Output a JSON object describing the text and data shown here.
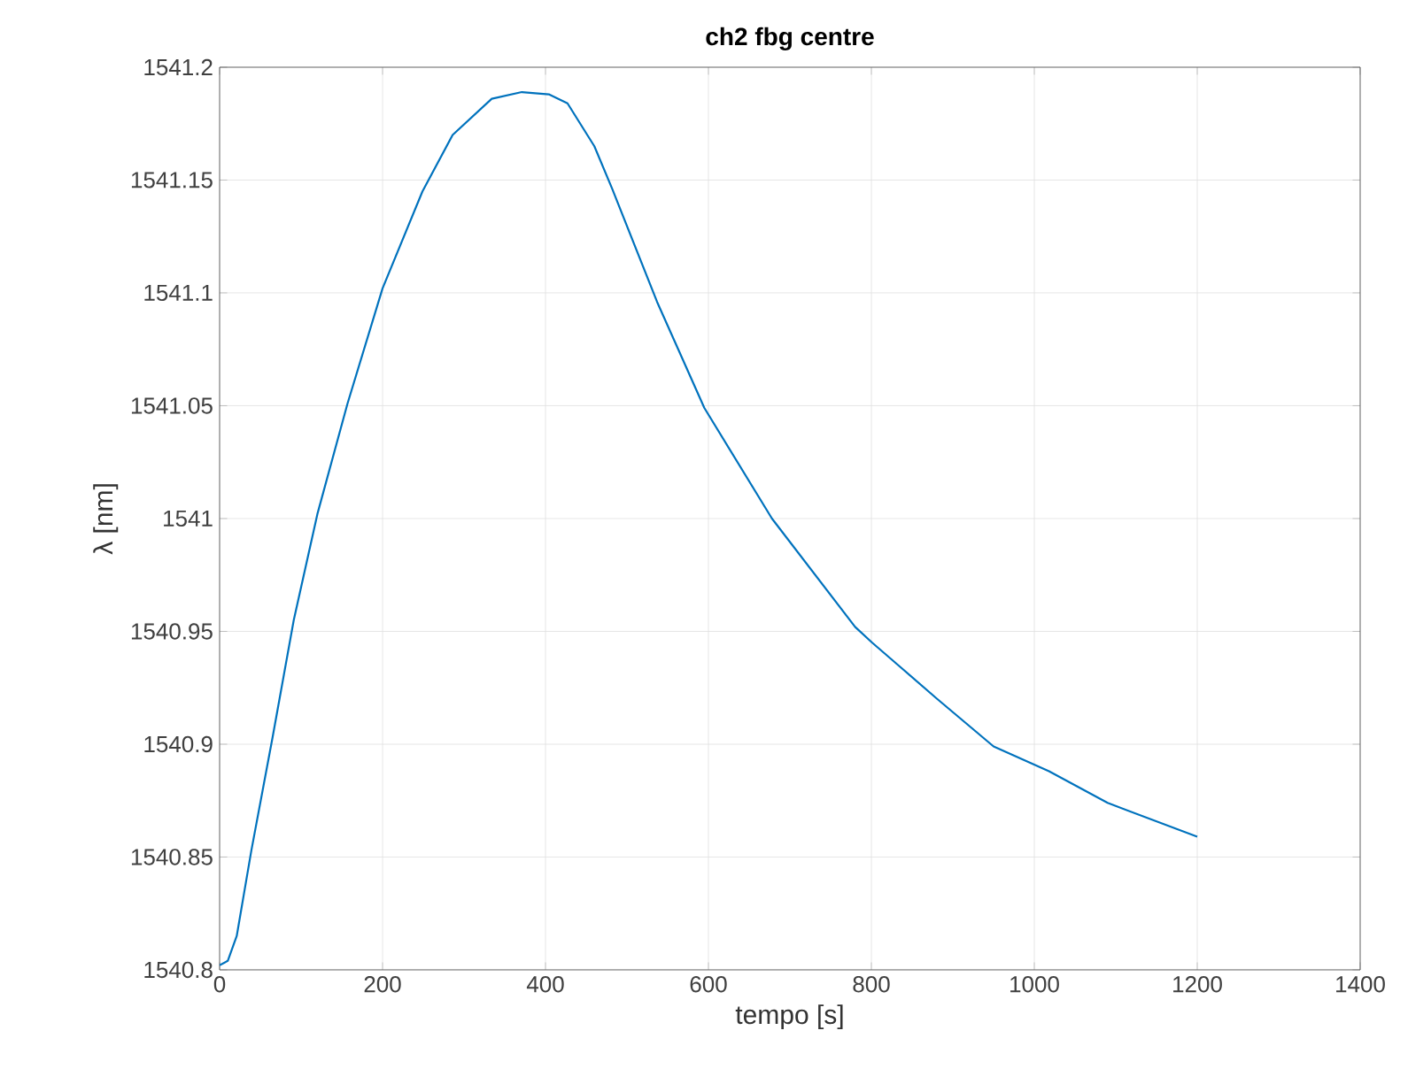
{
  "chart_data": {
    "type": "line",
    "title": "ch2 fbg centre",
    "xlabel": "tempo [s]",
    "ylabel": "λ [nm]",
    "x": [
      0,
      10,
      21,
      39,
      65,
      91,
      120,
      157,
      200,
      249,
      286,
      334,
      371,
      404,
      427,
      460,
      482,
      537,
      595,
      678,
      780,
      801,
      881,
      950,
      1018,
      1090,
      1200
    ],
    "series": [
      {
        "color": "#0072bd",
        "values": [
          1540.802,
          1540.804,
          1540.815,
          1540.853,
          1540.903,
          1540.955,
          1541.002,
          1541.051,
          1541.102,
          1541.145,
          1541.17,
          1541.186,
          1541.189,
          1541.188,
          1541.184,
          1541.165,
          1541.146,
          1541.096,
          1541.049,
          1541.0,
          1540.952,
          1540.945,
          1540.92,
          1540.899,
          1540.888,
          1540.874,
          1540.859
        ]
      }
    ],
    "xlim": [
      0,
      1400
    ],
    "xticks": [
      0,
      200,
      400,
      600,
      800,
      1000,
      1200,
      1400
    ],
    "ylim": [
      1540.8,
      1541.2
    ],
    "yticks": [
      1540.8,
      1540.85,
      1540.9,
      1540.95,
      1541,
      1541.05,
      1541.1,
      1541.15,
      1541.2
    ],
    "grid": true,
    "legend": false,
    "marker": "none",
    "line_style": "solid"
  }
}
